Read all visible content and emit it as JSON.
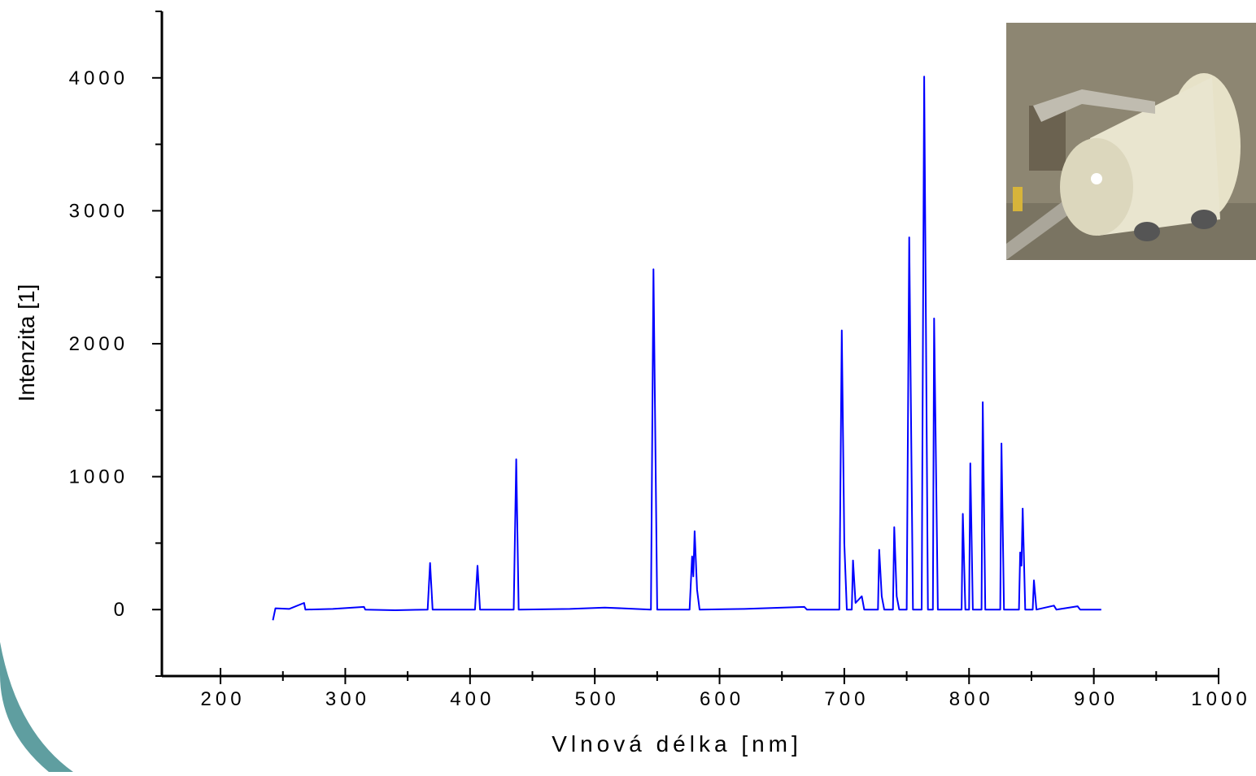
{
  "chart_data": {
    "type": "line",
    "x_label": "Vlnová délka [nm]",
    "y_label": "Intenzita [1]",
    "xlim": [
      153,
      1000
    ],
    "ylim": [
      -500,
      4500
    ],
    "xticks": [
      200,
      300,
      400,
      500,
      600,
      700,
      800,
      900,
      1000
    ],
    "yticks": [
      0,
      1000,
      2000,
      3000,
      4000
    ],
    "x_minor_ticks": [
      250,
      350,
      450,
      550,
      650,
      750,
      850,
      950
    ],
    "y_minor_ticks": [
      -500,
      500,
      1500,
      2500,
      3500,
      4500
    ],
    "series": [
      {
        "color": "#0000ff",
        "x": [
          242,
          244,
          255,
          267,
          268,
          290,
          315,
          316,
          340,
          366,
          368,
          370,
          404,
          406,
          408,
          435,
          437,
          439,
          480,
          508,
          545,
          547,
          550,
          576,
          578,
          579,
          580,
          582,
          584,
          620,
          668,
          670,
          696,
          698,
          700,
          702,
          706,
          707,
          709,
          714,
          716,
          727,
          728,
          730,
          732,
          739,
          740,
          742,
          744,
          750,
          752,
          755,
          762,
          764,
          767,
          771,
          772,
          775,
          794,
          795,
          797,
          800,
          801,
          803,
          810,
          811,
          813,
          825,
          826,
          828,
          840,
          841,
          842,
          843,
          845,
          851,
          852,
          854,
          868,
          870,
          887,
          889,
          906
        ],
        "values": [
          -80,
          10,
          5,
          50,
          0,
          5,
          20,
          0,
          -5,
          0,
          350,
          0,
          0,
          330,
          0,
          0,
          1130,
          0,
          5,
          15,
          0,
          2560,
          0,
          0,
          400,
          250,
          590,
          150,
          0,
          5,
          20,
          0,
          0,
          2100,
          500,
          0,
          0,
          370,
          50,
          100,
          0,
          0,
          450,
          100,
          0,
          0,
          620,
          100,
          0,
          0,
          2800,
          0,
          0,
          4010,
          0,
          0,
          2190,
          0,
          0,
          720,
          0,
          0,
          1100,
          0,
          0,
          1560,
          0,
          0,
          1250,
          0,
          0,
          430,
          330,
          760,
          0,
          0,
          220,
          0,
          30,
          0,
          25,
          0,
          0
        ]
      }
    ]
  }
}
